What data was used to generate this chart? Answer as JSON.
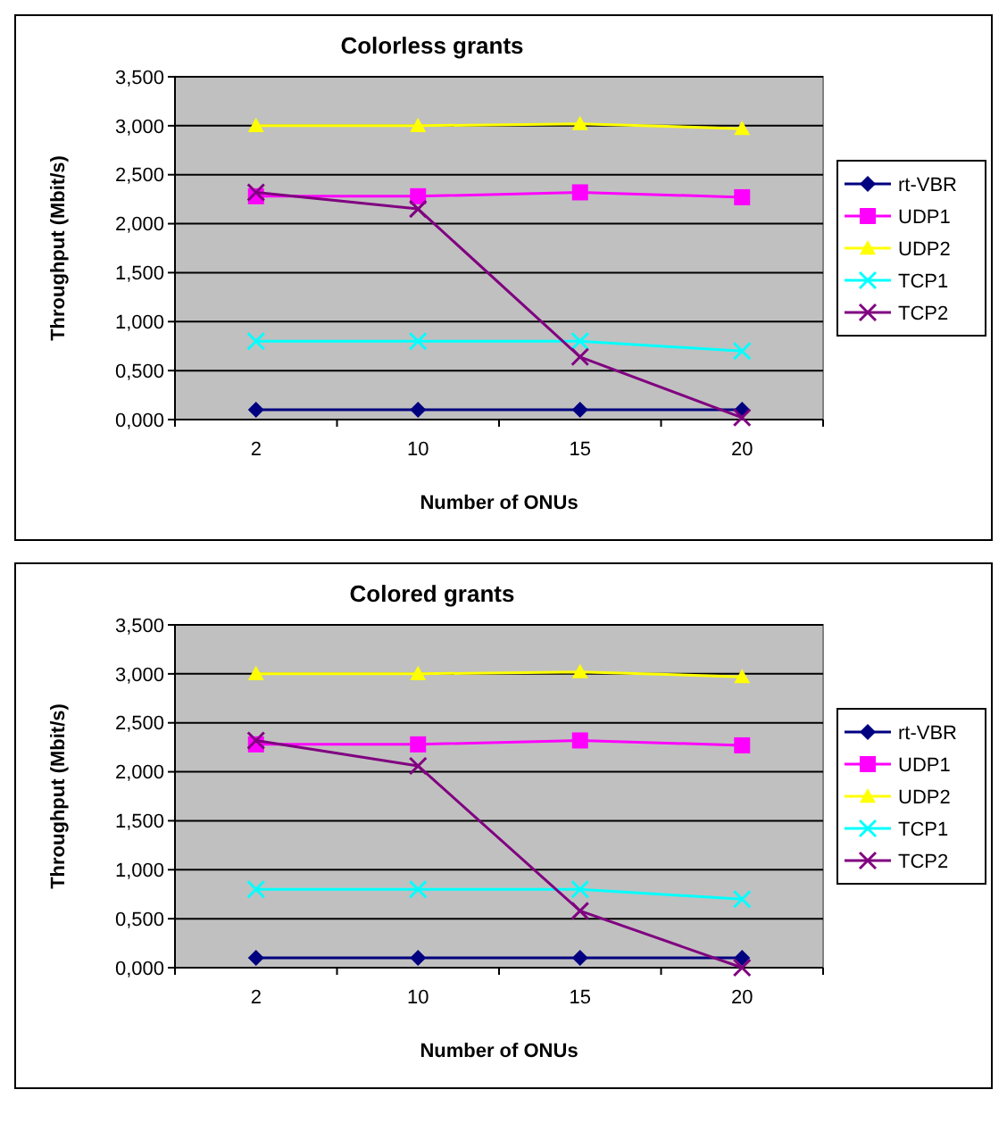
{
  "chart_data": [
    {
      "type": "line",
      "title": "Colorless grants",
      "xlabel": "Number of ONUs",
      "ylabel": "Throughput (Mbit/s)",
      "categories": [
        "2",
        "10",
        "15",
        "20"
      ],
      "ylim": [
        0,
        3.5
      ],
      "yticks": [
        {
          "value": 0,
          "label": "0,000"
        },
        {
          "value": 0.5,
          "label": "0,500"
        },
        {
          "value": 1,
          "label": "1,000"
        },
        {
          "value": 1.5,
          "label": "1,500"
        },
        {
          "value": 2,
          "label": "2,000"
        },
        {
          "value": 2.5,
          "label": "2,500"
        },
        {
          "value": 3,
          "label": "3,000"
        },
        {
          "value": 3.5,
          "label": "3,500"
        }
      ],
      "grid": "y",
      "legend": "right",
      "series": [
        {
          "name": "rt-VBR",
          "color": "#000080",
          "marker": "diamond",
          "values": [
            0.1,
            0.1,
            0.1,
            0.1
          ]
        },
        {
          "name": "UDP1",
          "color": "#ff00ff",
          "marker": "square",
          "values": [
            2.28,
            2.28,
            2.32,
            2.27
          ]
        },
        {
          "name": "UDP2",
          "color": "#ffff00",
          "marker": "triangle",
          "values": [
            3.0,
            3.0,
            3.02,
            2.97
          ]
        },
        {
          "name": "TCP1",
          "color": "#00ffff",
          "marker": "cross",
          "values": [
            0.8,
            0.8,
            0.8,
            0.7
          ]
        },
        {
          "name": "TCP2",
          "color": "#800080",
          "marker": "cross",
          "values": [
            2.32,
            2.15,
            0.64,
            0.02
          ]
        }
      ]
    },
    {
      "type": "line",
      "title": "Colored grants",
      "xlabel": "Number of ONUs",
      "ylabel": "Throughput (Mbit/s)",
      "categories": [
        "2",
        "10",
        "15",
        "20"
      ],
      "ylim": [
        0,
        3.5
      ],
      "yticks": [
        {
          "value": 0,
          "label": "0,000"
        },
        {
          "value": 0.5,
          "label": "0,500"
        },
        {
          "value": 1,
          "label": "1,000"
        },
        {
          "value": 1.5,
          "label": "1,500"
        },
        {
          "value": 2,
          "label": "2,000"
        },
        {
          "value": 2.5,
          "label": "2,500"
        },
        {
          "value": 3,
          "label": "3,000"
        },
        {
          "value": 3.5,
          "label": "3,500"
        }
      ],
      "grid": "y",
      "legend": "right",
      "series": [
        {
          "name": "rt-VBR",
          "color": "#000080",
          "marker": "diamond",
          "values": [
            0.1,
            0.1,
            0.1,
            0.1
          ]
        },
        {
          "name": "UDP1",
          "color": "#ff00ff",
          "marker": "square",
          "values": [
            2.28,
            2.28,
            2.32,
            2.27
          ]
        },
        {
          "name": "UDP2",
          "color": "#ffff00",
          "marker": "triangle",
          "values": [
            3.0,
            3.0,
            3.02,
            2.97
          ]
        },
        {
          "name": "TCP1",
          "color": "#00ffff",
          "marker": "cross",
          "values": [
            0.8,
            0.8,
            0.8,
            0.7
          ]
        },
        {
          "name": "TCP2",
          "color": "#800080",
          "marker": "cross",
          "values": [
            2.32,
            2.06,
            0.58,
            0.0
          ]
        }
      ]
    }
  ]
}
